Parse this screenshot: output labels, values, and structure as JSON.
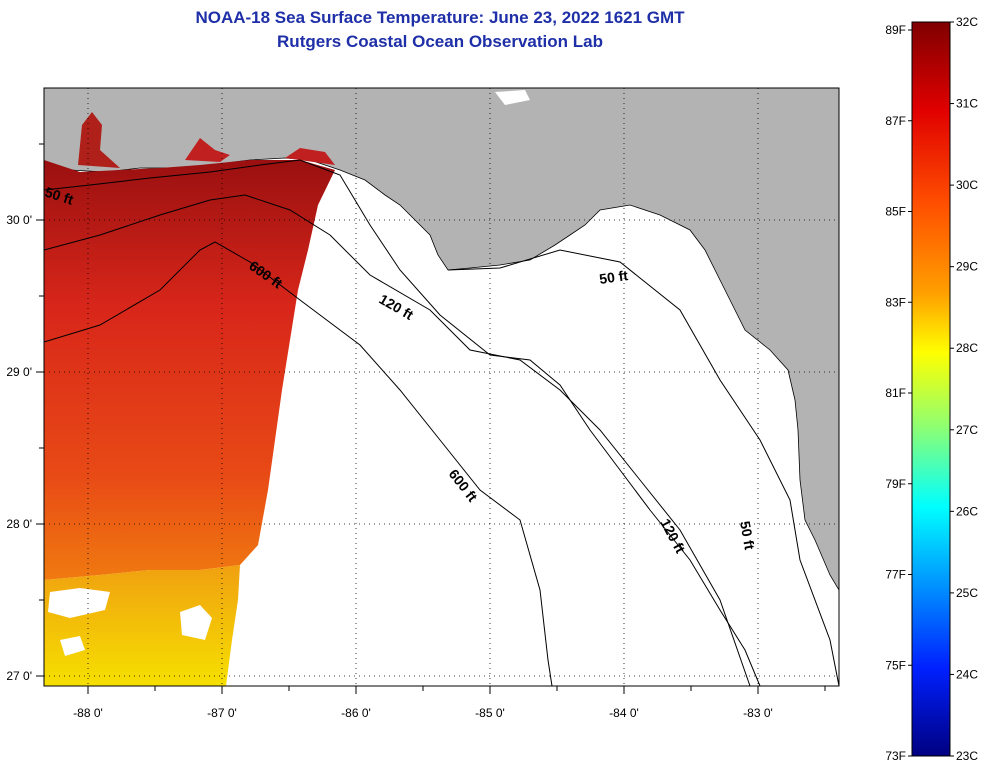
{
  "title": {
    "line1": "NOAA-18 Sea Surface Temperature:  June 23, 2022 1621 GMT",
    "line2": "Rutgers Coastal Ocean Observation Lab"
  },
  "axes": {
    "x_ticks": [
      "-88 0'",
      "-87 0'",
      "-86 0'",
      "-85 0'",
      "-84 0'",
      "-83 0'"
    ],
    "y_ticks": [
      "30 0'",
      "29 0'",
      "28 0'",
      "27 0'"
    ]
  },
  "contours": {
    "a": "50 ft",
    "b": "600 ft",
    "c": "120 ft",
    "d": "50 ft",
    "e": "600 ft",
    "f": "120 ft",
    "g": "50 ft"
  },
  "colorbar": {
    "fahrenheit": [
      "89F",
      "87F",
      "85F",
      "83F",
      "81F",
      "79F",
      "77F",
      "75F",
      "73F"
    ],
    "celsius": [
      "32C",
      "31C",
      "30C",
      "29C",
      "28C",
      "27C",
      "26C",
      "25C",
      "24C",
      "23C"
    ],
    "colors": [
      "#800000",
      "#ff0000",
      "#ff8000",
      "#ffff00",
      "#80ff80",
      "#00ffff",
      "#0080ff",
      "#0000ff",
      "#000080"
    ]
  },
  "colors": {
    "land": "#b3b3b3",
    "title": "#1f2fa8"
  }
}
